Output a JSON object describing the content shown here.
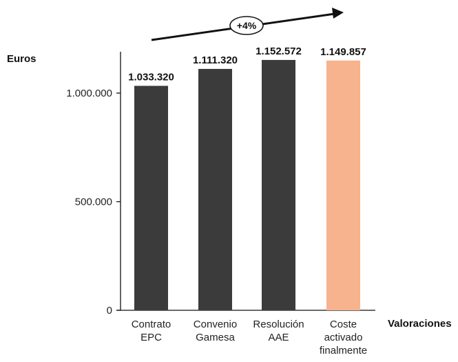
{
  "chart_data": {
    "type": "bar",
    "categories": [
      [
        "Contrato",
        "EPC"
      ],
      [
        "Convenio",
        "Gamesa"
      ],
      [
        "Resolución",
        "AAE"
      ],
      [
        "Coste",
        "activado",
        "finalmente"
      ]
    ],
    "values": [
      1033320,
      1111320,
      1152572,
      1149857
    ],
    "data_labels": [
      "1.033.320",
      "1.111.320",
      "1.152.572",
      "1.149.857"
    ],
    "bar_colors": [
      "#3a3b3a",
      "#3a3b3a",
      "#3a3b3a",
      "#f7b38d"
    ],
    "ylabel": "Euros",
    "xlabel": "Valoraciones",
    "ylim": [
      0,
      1200000
    ],
    "yticks": [
      0,
      500000,
      1000000
    ],
    "ytick_labels": [
      "0",
      "500.000",
      "1.000.000"
    ],
    "grid": false,
    "annotation": {
      "type": "growth-arrow",
      "label": "+4%"
    }
  }
}
